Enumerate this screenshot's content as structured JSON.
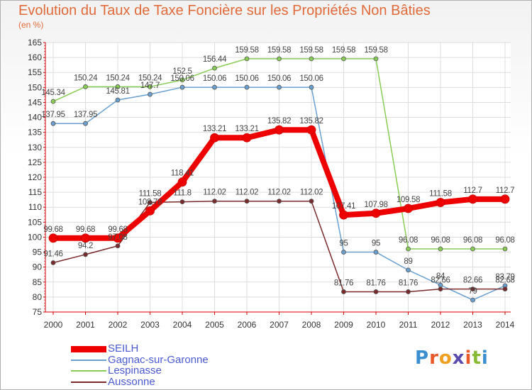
{
  "title": "Evolution du Taux de Taxe Foncière sur les Propriétés Non Bâties",
  "unit_label": "(en %)",
  "logo_text": "Proxiti",
  "chart_data": {
    "type": "line",
    "title": "Evolution du Taux de Taxe Foncière sur les Propriétés Non Bâties",
    "ylabel": "(en %)",
    "x": [
      "2000",
      "2001",
      "2002",
      "2003",
      "2004",
      "2005",
      "2006",
      "2007",
      "2008",
      "2009",
      "2010",
      "2011",
      "2012",
      "2013",
      "2014"
    ],
    "ylim": [
      75,
      165
    ],
    "yticks": [
      75,
      80,
      85,
      90,
      95,
      100,
      105,
      110,
      115,
      120,
      125,
      130,
      135,
      140,
      145,
      150,
      155,
      160,
      165
    ],
    "grid": true,
    "legend_position": "bottom-left",
    "series": [
      {
        "name": "SEILH",
        "color": "#ee0000",
        "width": 8,
        "values": [
          99.68,
          99.68,
          99.68,
          108.78,
          118.41,
          133.21,
          133.21,
          135.82,
          135.82,
          107.41,
          107.98,
          109.58,
          111.58,
          112.7,
          112.7
        ],
        "labels": [
          "99.68",
          "99.68",
          "99.68",
          "108.78",
          "118.41",
          "133.21",
          "133.21",
          "135.82",
          "135.82",
          "107.41",
          "107.98",
          "109.58",
          "111.58",
          "112.7",
          "112.7"
        ]
      },
      {
        "name": "Gagnac-sur-Garonne",
        "color": "#6aa0d0",
        "width": 1.5,
        "values": [
          137.95,
          137.95,
          145.81,
          147.7,
          150.06,
          150.06,
          150.06,
          150.06,
          150.06,
          95,
          95,
          89,
          84,
          79,
          83.79
        ],
        "labels": [
          "137.95",
          "137.95",
          "145.81",
          "147.7",
          "150.06",
          "150.06",
          "150.06",
          "150.06",
          "150.06",
          "95",
          "95",
          "89",
          "84",
          "79",
          "83.79"
        ]
      },
      {
        "name": "Lespinasse",
        "color": "#88cc55",
        "width": 1.5,
        "values": [
          145.34,
          150.24,
          150.24,
          150.24,
          152.5,
          156.44,
          159.58,
          159.58,
          159.58,
          159.58,
          159.58,
          96.08,
          96.08,
          96.08,
          96.08
        ],
        "labels": [
          "145.34",
          "150.24",
          "150.24",
          "150.24",
          "152.5",
          "156.44",
          "159.58",
          "159.58",
          "159.58",
          "159.58",
          "159.58",
          "96.08",
          "96.08",
          "96.08",
          "96.08"
        ]
      },
      {
        "name": "Aussonne",
        "color": "#7a2a2a",
        "width": 1.5,
        "values": [
          91.46,
          94.2,
          97.08,
          111.58,
          111.8,
          112.02,
          112.02,
          112.02,
          112.02,
          81.76,
          81.76,
          81.76,
          82.66,
          82.66,
          82.68
        ],
        "labels": [
          "91.46",
          "94.2",
          "97.08",
          "111.58",
          "111.8",
          "112.02",
          "112.02",
          "112.02",
          "112.02",
          "81.76",
          "81.76",
          "81.76",
          "82.66",
          "82.66",
          "82.68"
        ]
      }
    ]
  }
}
